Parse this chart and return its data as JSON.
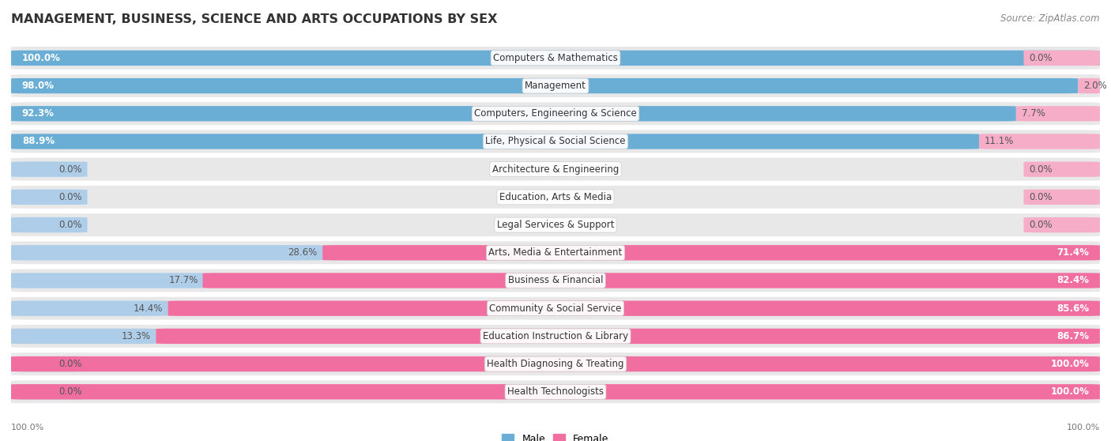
{
  "title": "MANAGEMENT, BUSINESS, SCIENCE AND ARTS OCCUPATIONS BY SEX",
  "source": "Source: ZipAtlas.com",
  "categories": [
    "Computers & Mathematics",
    "Management",
    "Computers, Engineering & Science",
    "Life, Physical & Social Science",
    "Architecture & Engineering",
    "Education, Arts & Media",
    "Legal Services & Support",
    "Arts, Media & Entertainment",
    "Business & Financial",
    "Community & Social Service",
    "Education Instruction & Library",
    "Health Diagnosing & Treating",
    "Health Technologists"
  ],
  "male": [
    100.0,
    98.0,
    92.3,
    88.9,
    0.0,
    0.0,
    0.0,
    28.6,
    17.7,
    14.4,
    13.3,
    0.0,
    0.0
  ],
  "female": [
    0.0,
    2.0,
    7.7,
    11.1,
    0.0,
    0.0,
    0.0,
    71.4,
    82.4,
    85.6,
    86.7,
    100.0,
    100.0
  ],
  "male_color_strong": "#6aaed6",
  "male_color_light": "#aecde8",
  "female_color_strong": "#f06fa0",
  "female_color_light": "#f5adc8",
  "row_bg_color": "#e8e8e8",
  "title_fontsize": 11.5,
  "label_fontsize": 8.5,
  "source_fontsize": 8.5,
  "bottom_axis_label": "100.0%"
}
